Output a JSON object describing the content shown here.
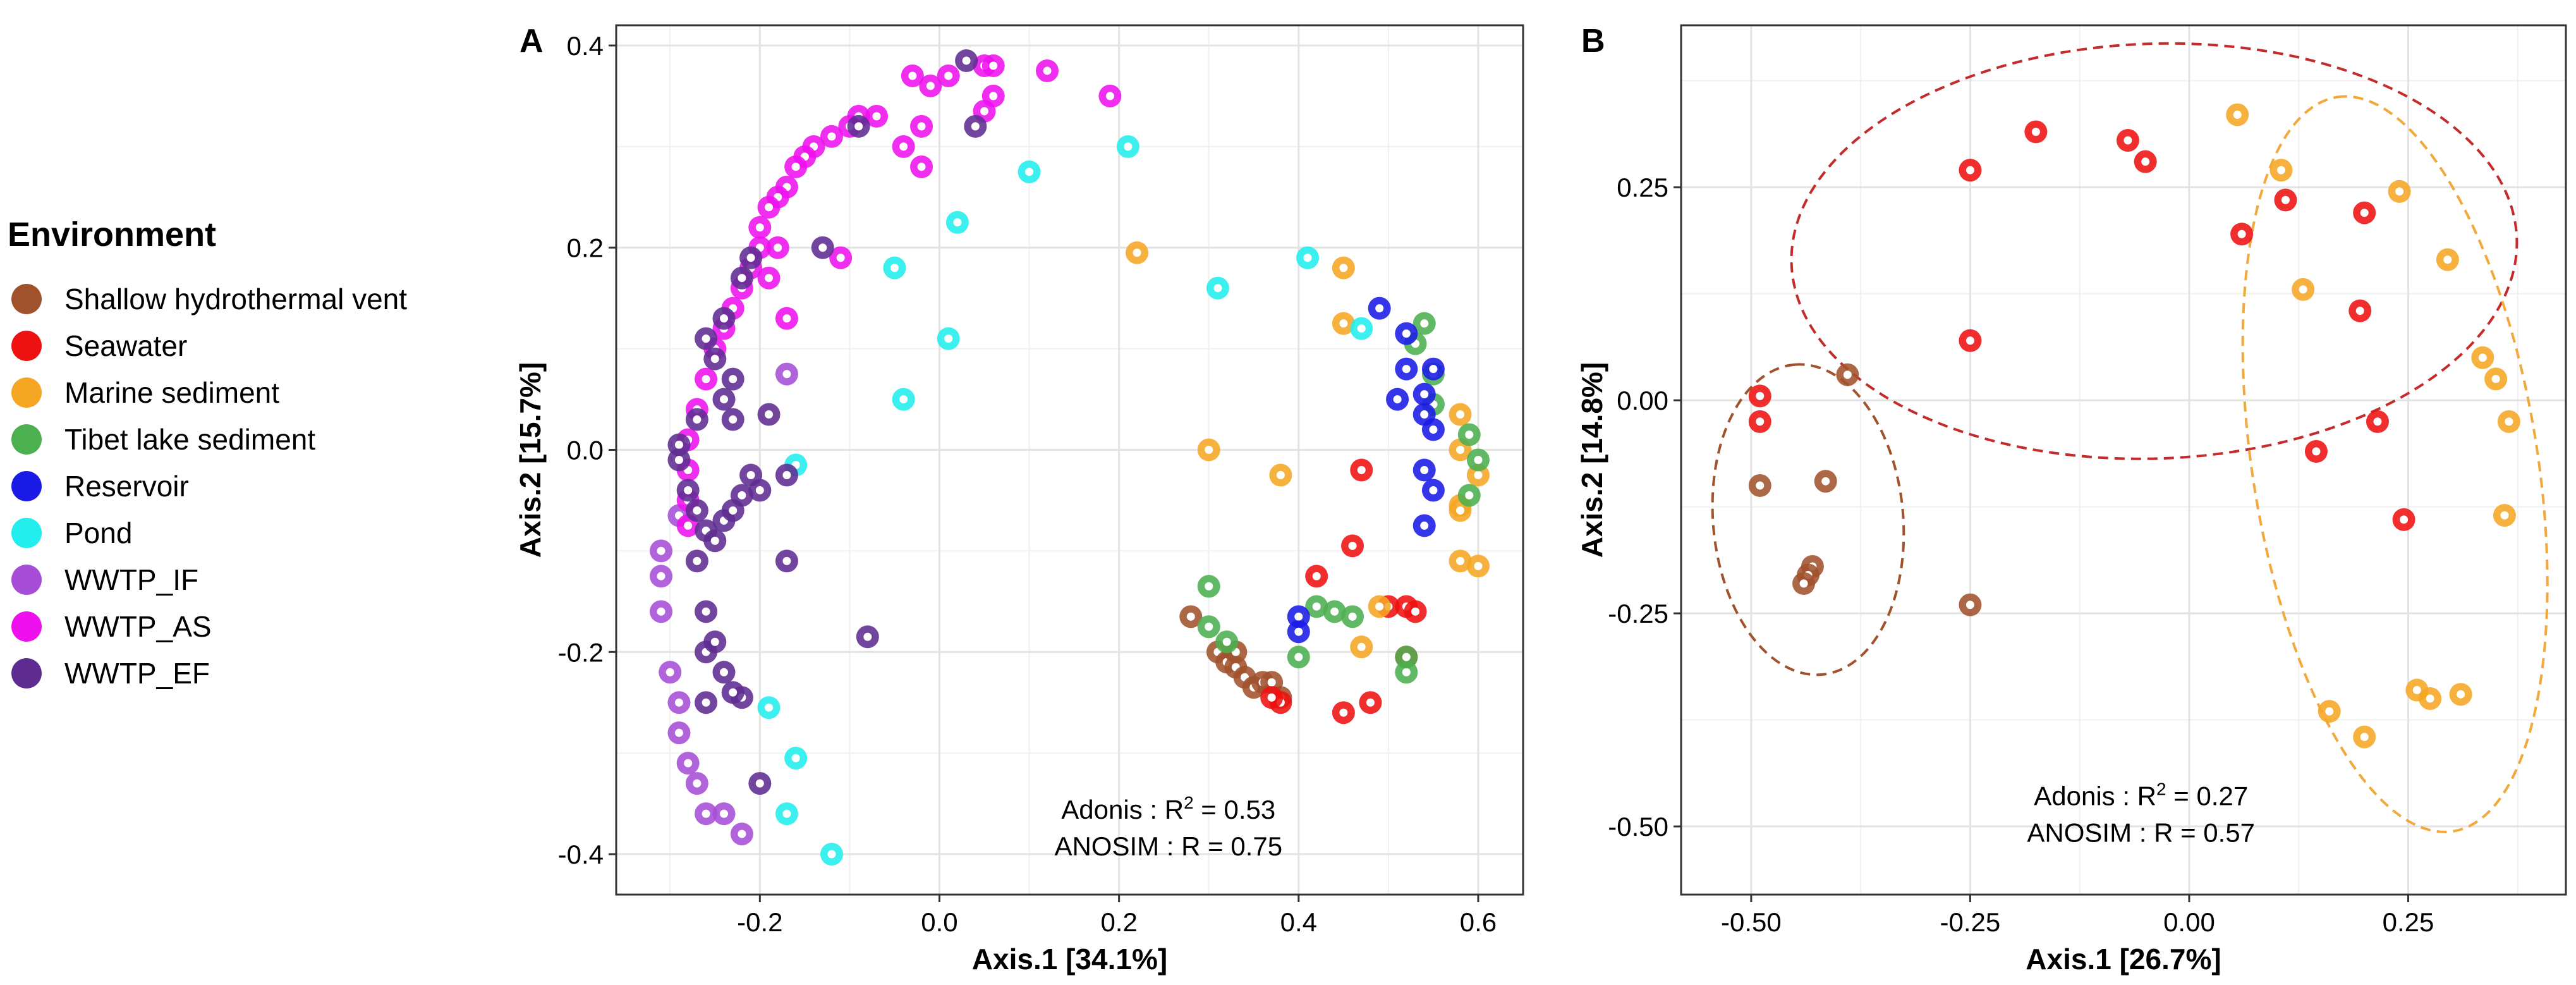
{
  "legend": {
    "title": "Environment",
    "items": [
      {
        "label": "Shallow hydrothermal vent",
        "color": "#A0522D"
      },
      {
        "label": "Seawater",
        "color": "#EE1111"
      },
      {
        "label": "Marine sediment",
        "color": "#F5A623"
      },
      {
        "label": "Tibet lake sediment",
        "color": "#4CAF50"
      },
      {
        "label": "Reservoir",
        "color": "#1A1AE6"
      },
      {
        "label": "Pond",
        "color": "#22EEEE"
      },
      {
        "label": "WWTP_IF",
        "color": "#A64DD6"
      },
      {
        "label": "WWTP_AS",
        "color": "#EE11EE"
      },
      {
        "label": "WWTP_EF",
        "color": "#5E2C91"
      }
    ]
  },
  "chart_data": [
    {
      "type": "scatter",
      "panel_label": "A",
      "xlabel": "Axis.1   [34.1%]",
      "ylabel": "Axis.2   [15.7%]",
      "xlim": [
        -0.36,
        0.65
      ],
      "ylim": [
        -0.44,
        0.42
      ],
      "xticks": [
        -0.2,
        0.0,
        0.2,
        0.4,
        0.6
      ],
      "xtick_labels": [
        "-0.2",
        "0.0",
        "0.2",
        "0.4",
        "0.6"
      ],
      "yticks": [
        -0.4,
        -0.2,
        0.0,
        0.2,
        0.4
      ],
      "ytick_labels": [
        "-0.4",
        "-0.2",
        "0.0",
        "0.2",
        "0.4"
      ],
      "grid": true,
      "stats": {
        "adonis_label": "Adonis : R",
        "adonis_sup": "2",
        "adonis_value": " = 0.53",
        "anosim": "ANOSIM : R = 0.75"
      },
      "series": [
        {
          "name": "Shallow hydrothermal vent",
          "points": [
            [
              0.28,
              -0.165
            ],
            [
              0.31,
              -0.2
            ],
            [
              0.32,
              -0.21
            ],
            [
              0.33,
              -0.215
            ],
            [
              0.34,
              -0.225
            ],
            [
              0.35,
              -0.235
            ],
            [
              0.36,
              -0.23
            ],
            [
              0.37,
              -0.23
            ],
            [
              0.38,
              -0.245
            ],
            [
              0.33,
              -0.2
            ]
          ]
        },
        {
          "name": "Seawater",
          "points": [
            [
              0.47,
              -0.02
            ],
            [
              0.42,
              -0.125
            ],
            [
              0.46,
              -0.095
            ],
            [
              0.5,
              -0.155
            ],
            [
              0.52,
              -0.155
            ],
            [
              0.53,
              -0.16
            ],
            [
              0.52,
              -0.205
            ],
            [
              0.45,
              -0.26
            ],
            [
              0.48,
              -0.25
            ],
            [
              0.38,
              -0.25
            ],
            [
              0.37,
              -0.245
            ]
          ]
        },
        {
          "name": "Marine sediment",
          "points": [
            [
              0.22,
              0.195
            ],
            [
              0.45,
              0.18
            ],
            [
              0.45,
              0.125
            ],
            [
              0.3,
              0.0
            ],
            [
              0.38,
              -0.025
            ],
            [
              0.58,
              0.035
            ],
            [
              0.58,
              0.0
            ],
            [
              0.6,
              -0.025
            ],
            [
              0.58,
              -0.055
            ],
            [
              0.58,
              -0.11
            ],
            [
              0.6,
              -0.115
            ],
            [
              0.49,
              -0.155
            ],
            [
              0.47,
              -0.195
            ],
            [
              0.58,
              -0.06
            ]
          ]
        },
        {
          "name": "Tibet lake sediment",
          "points": [
            [
              0.54,
              0.125
            ],
            [
              0.53,
              0.105
            ],
            [
              0.55,
              0.075
            ],
            [
              0.55,
              0.045
            ],
            [
              0.59,
              0.015
            ],
            [
              0.6,
              -0.01
            ],
            [
              0.59,
              -0.045
            ],
            [
              0.3,
              -0.135
            ],
            [
              0.42,
              -0.155
            ],
            [
              0.44,
              -0.16
            ],
            [
              0.46,
              -0.165
            ],
            [
              0.3,
              -0.175
            ],
            [
              0.32,
              -0.19
            ],
            [
              0.4,
              -0.205
            ],
            [
              0.52,
              -0.22
            ],
            [
              0.52,
              -0.205
            ]
          ]
        },
        {
          "name": "Reservoir",
          "points": [
            [
              0.49,
              0.14
            ],
            [
              0.52,
              0.115
            ],
            [
              0.52,
              0.08
            ],
            [
              0.55,
              0.08
            ],
            [
              0.51,
              0.05
            ],
            [
              0.54,
              0.055
            ],
            [
              0.54,
              0.035
            ],
            [
              0.55,
              0.02
            ],
            [
              0.54,
              -0.02
            ],
            [
              0.55,
              -0.04
            ],
            [
              0.54,
              -0.075
            ],
            [
              0.4,
              -0.165
            ],
            [
              0.4,
              -0.18
            ]
          ]
        },
        {
          "name": "Pond",
          "points": [
            [
              0.1,
              0.275
            ],
            [
              0.21,
              0.3
            ],
            [
              0.02,
              0.225
            ],
            [
              -0.05,
              0.18
            ],
            [
              0.01,
              0.11
            ],
            [
              -0.04,
              0.05
            ],
            [
              0.31,
              0.16
            ],
            [
              0.41,
              0.19
            ],
            [
              0.47,
              0.12
            ],
            [
              -0.16,
              -0.015
            ],
            [
              -0.19,
              -0.255
            ],
            [
              -0.16,
              -0.305
            ],
            [
              -0.17,
              -0.36
            ],
            [
              -0.12,
              -0.4
            ]
          ]
        },
        {
          "name": "WWTP_IF",
          "points": [
            [
              -0.17,
              0.075
            ],
            [
              -0.29,
              -0.065
            ],
            [
              -0.31,
              -0.1
            ],
            [
              -0.31,
              -0.125
            ],
            [
              -0.31,
              -0.16
            ],
            [
              -0.3,
              -0.22
            ],
            [
              -0.29,
              -0.25
            ],
            [
              -0.29,
              -0.28
            ],
            [
              -0.28,
              -0.31
            ],
            [
              -0.27,
              -0.33
            ],
            [
              -0.26,
              -0.36
            ],
            [
              -0.24,
              -0.36
            ],
            [
              -0.22,
              -0.38
            ]
          ]
        },
        {
          "name": "WWTP_AS",
          "points": [
            [
              -0.03,
              0.37
            ],
            [
              -0.01,
              0.36
            ],
            [
              0.01,
              0.37
            ],
            [
              0.05,
              0.38
            ],
            [
              0.06,
              0.38
            ],
            [
              0.06,
              0.35
            ],
            [
              0.05,
              0.335
            ],
            [
              0.12,
              0.375
            ],
            [
              0.19,
              0.35
            ],
            [
              -0.07,
              0.33
            ],
            [
              -0.09,
              0.33
            ],
            [
              -0.1,
              0.32
            ],
            [
              -0.12,
              0.31
            ],
            [
              -0.14,
              0.3
            ],
            [
              -0.15,
              0.29
            ],
            [
              -0.16,
              0.28
            ],
            [
              -0.17,
              0.26
            ],
            [
              -0.18,
              0.25
            ],
            [
              -0.19,
              0.24
            ],
            [
              -0.2,
              0.22
            ],
            [
              -0.2,
              0.2
            ],
            [
              -0.21,
              0.18
            ],
            [
              -0.22,
              0.16
            ],
            [
              -0.23,
              0.14
            ],
            [
              -0.24,
              0.12
            ],
            [
              -0.25,
              0.1
            ],
            [
              -0.26,
              0.07
            ],
            [
              -0.27,
              0.04
            ],
            [
              -0.28,
              0.01
            ],
            [
              -0.28,
              -0.02
            ],
            [
              -0.28,
              -0.05
            ],
            [
              -0.28,
              -0.075
            ],
            [
              -0.02,
              0.28
            ],
            [
              -0.04,
              0.3
            ],
            [
              -0.02,
              0.32
            ],
            [
              -0.11,
              0.19
            ],
            [
              -0.17,
              0.13
            ],
            [
              -0.19,
              0.17
            ],
            [
              -0.18,
              0.2
            ]
          ]
        },
        {
          "name": "WWTP_EF",
          "points": [
            [
              0.03,
              0.385
            ],
            [
              0.04,
              0.32
            ],
            [
              -0.09,
              0.32
            ],
            [
              -0.13,
              0.2
            ],
            [
              -0.21,
              0.19
            ],
            [
              -0.22,
              0.17
            ],
            [
              -0.24,
              0.13
            ],
            [
              -0.26,
              0.11
            ],
            [
              -0.25,
              0.09
            ],
            [
              -0.24,
              0.05
            ],
            [
              -0.23,
              0.07
            ],
            [
              -0.27,
              0.03
            ],
            [
              -0.29,
              0.005
            ],
            [
              -0.29,
              -0.01
            ],
            [
              -0.28,
              -0.04
            ],
            [
              -0.27,
              -0.06
            ],
            [
              -0.26,
              -0.08
            ],
            [
              -0.25,
              -0.09
            ],
            [
              -0.24,
              -0.07
            ],
            [
              -0.23,
              -0.06
            ],
            [
              -0.22,
              -0.045
            ],
            [
              -0.21,
              -0.025
            ],
            [
              -0.2,
              -0.04
            ],
            [
              -0.19,
              0.035
            ],
            [
              -0.23,
              0.03
            ],
            [
              -0.17,
              -0.025
            ],
            [
              -0.17,
              -0.11
            ],
            [
              -0.08,
              -0.185
            ],
            [
              -0.26,
              -0.2
            ],
            [
              -0.26,
              -0.25
            ],
            [
              -0.22,
              -0.245
            ],
            [
              -0.2,
              -0.33
            ],
            [
              -0.27,
              -0.11
            ],
            [
              -0.26,
              -0.16
            ],
            [
              -0.25,
              -0.19
            ],
            [
              -0.24,
              -0.22
            ],
            [
              -0.23,
              -0.24
            ]
          ]
        }
      ]
    },
    {
      "type": "scatter",
      "panel_label": "B",
      "xlabel": "Axis.1   [26.7%]",
      "ylabel": "Axis.2   [14.8%]",
      "xlim": [
        -0.58,
        0.43
      ],
      "ylim": [
        -0.58,
        0.44
      ],
      "xticks": [
        -0.5,
        -0.25,
        0.0,
        0.25
      ],
      "xtick_labels": [
        "-0.50",
        "-0.25",
        "0.00",
        "0.25"
      ],
      "yticks": [
        -0.5,
        -0.25,
        0.0,
        0.25
      ],
      "ytick_labels": [
        "-0.50",
        "-0.25",
        "0.00",
        "0.25"
      ],
      "grid": true,
      "stats": {
        "adonis_label": "Adonis : R",
        "adonis_sup": "2",
        "adonis_value": " = 0.27",
        "anosim": "ANOSIM : R = 0.57"
      },
      "ellipses": [
        {
          "group": "Seawater",
          "color": "#C42B2B",
          "cx": -0.04,
          "cy": 0.175,
          "rx": 0.42,
          "ry": 0.24,
          "rotation_deg": -2
        },
        {
          "group": "Marine sediment",
          "color": "#F2A93B",
          "cx": 0.235,
          "cy": -0.075,
          "rx": 0.43,
          "ry": 0.165,
          "rotation_deg": -99
        },
        {
          "group": "Shallow hydrothermal vent",
          "color": "#A0522D",
          "cx": -0.435,
          "cy": -0.14,
          "rx": 0.18,
          "ry": 0.11,
          "rotation_deg": -95
        }
      ],
      "series": [
        {
          "name": "Shallow hydrothermal vent",
          "points": [
            [
              -0.39,
              0.03
            ],
            [
              -0.415,
              -0.095
            ],
            [
              -0.49,
              -0.1
            ],
            [
              -0.43,
              -0.195
            ],
            [
              -0.435,
              -0.205
            ],
            [
              -0.44,
              -0.215
            ],
            [
              -0.25,
              -0.24
            ]
          ]
        },
        {
          "name": "Seawater",
          "points": [
            [
              -0.49,
              0.005
            ],
            [
              -0.49,
              -0.025
            ],
            [
              -0.25,
              0.27
            ],
            [
              -0.175,
              0.315
            ],
            [
              -0.07,
              0.305
            ],
            [
              -0.05,
              0.28
            ],
            [
              -0.25,
              0.07
            ],
            [
              0.06,
              0.195
            ],
            [
              0.11,
              0.235
            ],
            [
              0.2,
              0.22
            ],
            [
              0.195,
              0.105
            ],
            [
              0.145,
              -0.06
            ],
            [
              0.215,
              -0.025
            ],
            [
              0.245,
              -0.14
            ]
          ]
        },
        {
          "name": "Marine sediment",
          "points": [
            [
              0.055,
              0.335
            ],
            [
              0.105,
              0.27
            ],
            [
              0.24,
              0.245
            ],
            [
              0.295,
              0.165
            ],
            [
              0.13,
              0.13
            ],
            [
              0.335,
              0.05
            ],
            [
              0.35,
              0.025
            ],
            [
              0.365,
              -0.025
            ],
            [
              0.36,
              -0.135
            ],
            [
              0.26,
              -0.34
            ],
            [
              0.275,
              -0.35
            ],
            [
              0.31,
              -0.345
            ],
            [
              0.16,
              -0.365
            ],
            [
              0.2,
              -0.395
            ]
          ]
        }
      ]
    }
  ]
}
